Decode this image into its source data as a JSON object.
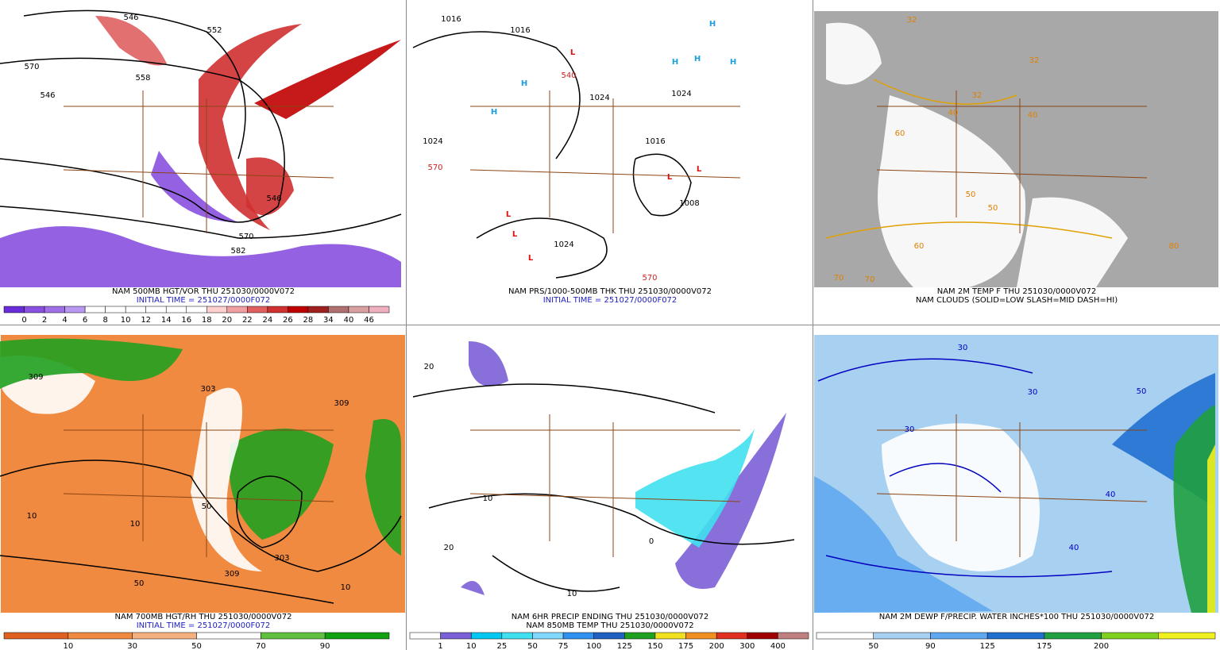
{
  "panels": [
    {
      "captions": [
        "NAM 500MB HGT/VOR THU 251030/0000V072",
        "INITIAL TIME = 251027/0000F072"
      ],
      "colorbar": {
        "labels": [
          0,
          2,
          4,
          6,
          8,
          10,
          12,
          14,
          16,
          18,
          20,
          22,
          24,
          26,
          28,
          34,
          40,
          46
        ],
        "colors": [
          "#6a2cd8",
          "#8a50e0",
          "#a070e8",
          "#b898f0",
          "#ffffff",
          "#ffffff",
          "#ffffff",
          "#ffffff",
          "#ffffff",
          "#ffffff",
          "#ffd0d0",
          "#f0a0a0",
          "#e06060",
          "#d03030",
          "#c00000",
          "#a02020",
          "#b07070",
          "#d8a0a0",
          "#f0b0c0"
        ]
      },
      "map_labels": [
        "570",
        "546",
        "552",
        "546",
        "558",
        "570",
        "582",
        "546"
      ]
    },
    {
      "captions": [
        "NAM PRS/1000-500MB THK THU 251030/0000V072",
        "INITIAL TIME = 251027/0000F072"
      ],
      "map_labels": [
        "1016",
        "1016",
        "1024",
        "1024",
        "1024",
        "1016",
        "1024",
        "1008",
        "570",
        "540",
        "570",
        "H",
        "H",
        "H",
        "H",
        "H",
        "H",
        "L",
        "L",
        "L",
        "L",
        "L",
        "L"
      ]
    },
    {
      "captions": [
        "NAM 2M TEMP F THU 251030/0000V072",
        "NAM CLOUDS (SOLID=LOW SLASH=MID DASH=HI)"
      ],
      "map_labels": [
        "32",
        "32",
        "32",
        "40",
        "40",
        "50",
        "50",
        "60",
        "60",
        "70",
        "70",
        "80"
      ]
    },
    {
      "captions": [
        "NAM 700MB HGT/RH THU 251030/0000V072",
        "INITIAL TIME = 251027/0000F072"
      ],
      "colorbar": {
        "labels": [
          10,
          30,
          50,
          70,
          90
        ],
        "colors": [
          "#e06020",
          "#f08a40",
          "#f5b080",
          "#ffffff",
          "#60c040",
          "#10a010"
        ]
      },
      "map_labels": [
        "309",
        "303",
        "309",
        "10",
        "10",
        "10",
        "50",
        "50",
        "309",
        "303"
      ]
    },
    {
      "captions": [
        "NAM 6HR PRECIP ENDING THU 251030/0000V072",
        "NAM 850MB TEMP THU 251030/0000V072"
      ],
      "colorbar": {
        "labels": [
          1,
          10,
          25,
          50,
          75,
          100,
          125,
          150,
          175,
          200,
          300,
          400
        ],
        "colors": [
          "#ffffff",
          "#7b5fd6",
          "#00c8f0",
          "#40e0f0",
          "#80d8ff",
          "#3090f0",
          "#2060c0",
          "#20a020",
          "#f0e020",
          "#f09020",
          "#e03020",
          "#a00000",
          "#c08080"
        ]
      },
      "map_labels": [
        "20",
        "10",
        "0",
        "10",
        "20"
      ]
    },
    {
      "captions": [
        "NAM 2M DEWP F/PRECIP. WATER INCHES*100 THU 251030/0000V072"
      ],
      "colorbar": {
        "labels": [
          50,
          90,
          125,
          175,
          200
        ],
        "colors": [
          "#ffffff",
          "#a8d0f0",
          "#60a8f0",
          "#2070d0",
          "#20a040",
          "#80d020",
          "#f0f020"
        ]
      },
      "map_labels": [
        "30",
        "30",
        "30",
        "50",
        "40",
        "40"
      ]
    }
  ]
}
